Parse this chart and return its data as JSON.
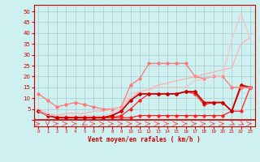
{
  "title": "",
  "xlabel": "Vent moyen/en rafales ( km/h )",
  "background_color": "#cff0f0",
  "grid_color": "#aacccc",
  "x_values": [
    0,
    1,
    2,
    3,
    4,
    5,
    6,
    7,
    8,
    9,
    10,
    11,
    12,
    13,
    14,
    15,
    16,
    17,
    18,
    19,
    20,
    21,
    22,
    23
  ],
  "series": [
    {
      "color": "#ff2222",
      "alpha": 1.0,
      "linewidth": 0.9,
      "marker": "D",
      "markersize": 1.8,
      "values": [
        4,
        2,
        1,
        1,
        1,
        1,
        1,
        1,
        1,
        1,
        1,
        2,
        2,
        2,
        2,
        2,
        2,
        2,
        2,
        2,
        2,
        4,
        4,
        15
      ]
    },
    {
      "color": "#ff2222",
      "alpha": 1.0,
      "linewidth": 0.9,
      "marker": "D",
      "markersize": 1.8,
      "values": [
        4,
        2,
        1,
        1,
        1,
        1,
        1,
        1,
        1,
        2,
        5,
        9,
        12,
        12,
        12,
        12,
        13,
        12,
        7,
        8,
        8,
        4,
        15,
        15
      ]
    },
    {
      "color": "#cc0000",
      "alpha": 1.0,
      "linewidth": 1.3,
      "marker": "D",
      "markersize": 2.0,
      "values": [
        4,
        2,
        1,
        1,
        1,
        1,
        1,
        1,
        2,
        4,
        9,
        12,
        12,
        12,
        12,
        12,
        13,
        13,
        8,
        8,
        8,
        4,
        16,
        15
      ]
    },
    {
      "color": "#ff7777",
      "alpha": 1.0,
      "linewidth": 0.9,
      "marker": "D",
      "markersize": 1.8,
      "values": [
        12,
        9,
        6,
        7,
        8,
        7,
        6,
        5,
        5,
        6,
        16,
        19,
        26,
        26,
        26,
        26,
        26,
        20,
        19,
        20,
        20,
        15,
        15,
        15
      ]
    },
    {
      "color": "#ffaaaa",
      "alpha": 0.9,
      "linewidth": 0.9,
      "marker": null,
      "markersize": 0,
      "values": [
        5,
        3,
        2,
        3,
        3,
        3,
        4,
        4,
        5,
        6,
        10,
        13,
        14,
        16,
        17,
        18,
        19,
        20,
        21,
        22,
        23,
        24,
        35,
        38
      ]
    },
    {
      "color": "#ffbbbb",
      "alpha": 0.8,
      "linewidth": 0.9,
      "marker": null,
      "markersize": 0,
      "values": [
        4,
        2,
        2,
        2,
        2,
        2,
        2,
        2,
        3,
        5,
        12,
        13,
        14,
        15,
        15,
        15,
        15,
        18,
        19,
        20,
        20,
        37,
        49,
        37
      ]
    }
  ],
  "ylim": [
    -3,
    53
  ],
  "xlim": [
    -0.5,
    23.5
  ],
  "yticks": [
    0,
    5,
    10,
    15,
    20,
    25,
    30,
    35,
    40,
    45,
    50
  ],
  "xticks": [
    0,
    1,
    2,
    3,
    4,
    5,
    6,
    7,
    8,
    9,
    10,
    11,
    12,
    13,
    14,
    15,
    16,
    17,
    18,
    19,
    20,
    21,
    22,
    23
  ]
}
